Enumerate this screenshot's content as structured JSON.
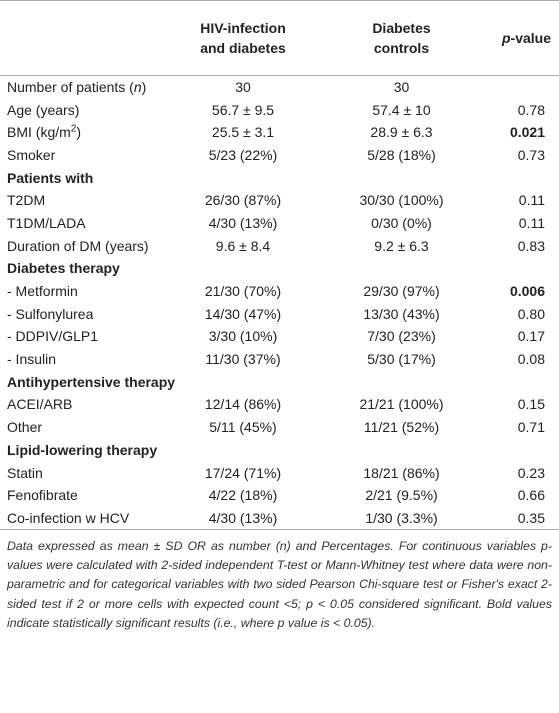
{
  "header": {
    "col1": [
      "HIV-infection",
      "and diabetes"
    ],
    "col2": [
      "Diabetes",
      "controls"
    ],
    "col3": [
      {
        "text": "p",
        "style": "italic"
      },
      "-value"
    ]
  },
  "rows": [
    {
      "label": [
        "Number of patients (",
        {
          "text": "n",
          "style": "italic"
        },
        ")"
      ],
      "values": [
        "30",
        "30",
        null
      ]
    },
    {
      "label": "Age (years)",
      "values": [
        "56.7 ± 9.5",
        "57.4 ± 10",
        "0.78"
      ]
    },
    {
      "label": [
        "BMI (kg/m",
        {
          "text": "2",
          "style": "sup"
        },
        ")"
      ],
      "values": [
        "25.5 ± 3.1",
        "28.9 ± 6.3",
        "0.021"
      ],
      "p_bold": true
    },
    {
      "label": "Smoker",
      "values": [
        "5/23 (22%)",
        "5/28 (18%)",
        "0.73"
      ]
    },
    {
      "section": "Patients with"
    },
    {
      "label": "T2DM",
      "values": [
        "26/30 (87%)",
        "30/30 (100%)",
        "0.11"
      ]
    },
    {
      "label": "T1DM/LADA",
      "values": [
        "4/30 (13%)",
        "0/30 (0%)",
        "0.11"
      ]
    },
    {
      "label": "Duration of DM (years)",
      "values": [
        "9.6 ± 8.4",
        "9.2 ± 6.3",
        "0.83"
      ]
    },
    {
      "section": "Diabetes therapy"
    },
    {
      "label": "- Metformin",
      "values": [
        "21/30 (70%)",
        "29/30 (97%)",
        "0.006"
      ],
      "p_bold": true
    },
    {
      "label": "- Sulfonylurea",
      "values": [
        "14/30 (47%)",
        "13/30 (43%)",
        "0.80"
      ]
    },
    {
      "label": "- DDPIV/GLP1",
      "values": [
        "3/30 (10%)",
        "7/30 (23%)",
        "0.17"
      ]
    },
    {
      "label": "- Insulin",
      "values": [
        "11/30 (37%)",
        "5/30 (17%)",
        "0.08"
      ]
    },
    {
      "section": "Antihypertensive therapy"
    },
    {
      "label": "ACEI/ARB",
      "values": [
        "12/14 (86%)",
        "21/21 (100%)",
        "0.15"
      ]
    },
    {
      "label": "Other",
      "values": [
        "5/11 (45%)",
        "11/21 (52%)",
        "0.71"
      ]
    },
    {
      "section": "Lipid-lowering therapy"
    },
    {
      "label": "Statin",
      "values": [
        "17/24 (71%)",
        "18/21 (86%)",
        "0.23"
      ]
    },
    {
      "label": "Fenofibrate",
      "values": [
        "4/22 (18%)",
        "2/21 (9.5%)",
        "0.66"
      ]
    },
    {
      "label": "Co-infection w HCV",
      "values": [
        "4/30 (13%)",
        "1/30 (3.3%)",
        "0.35"
      ]
    }
  ],
  "footnote": "Data expressed as mean ± SD OR as number (n) and Percentages. For continuous variables p-values were calculated with 2-sided independent T-test or Mann-Whitney test where data were non-parametric and for categorical variables with two sided Pearson Chi-square test or Fisher's exact 2-sided test if 2 or more cells with expected count <5; p < 0.05 considered significant. Bold values indicate statistically significant results (i.e., where p value is < 0.05)."
}
